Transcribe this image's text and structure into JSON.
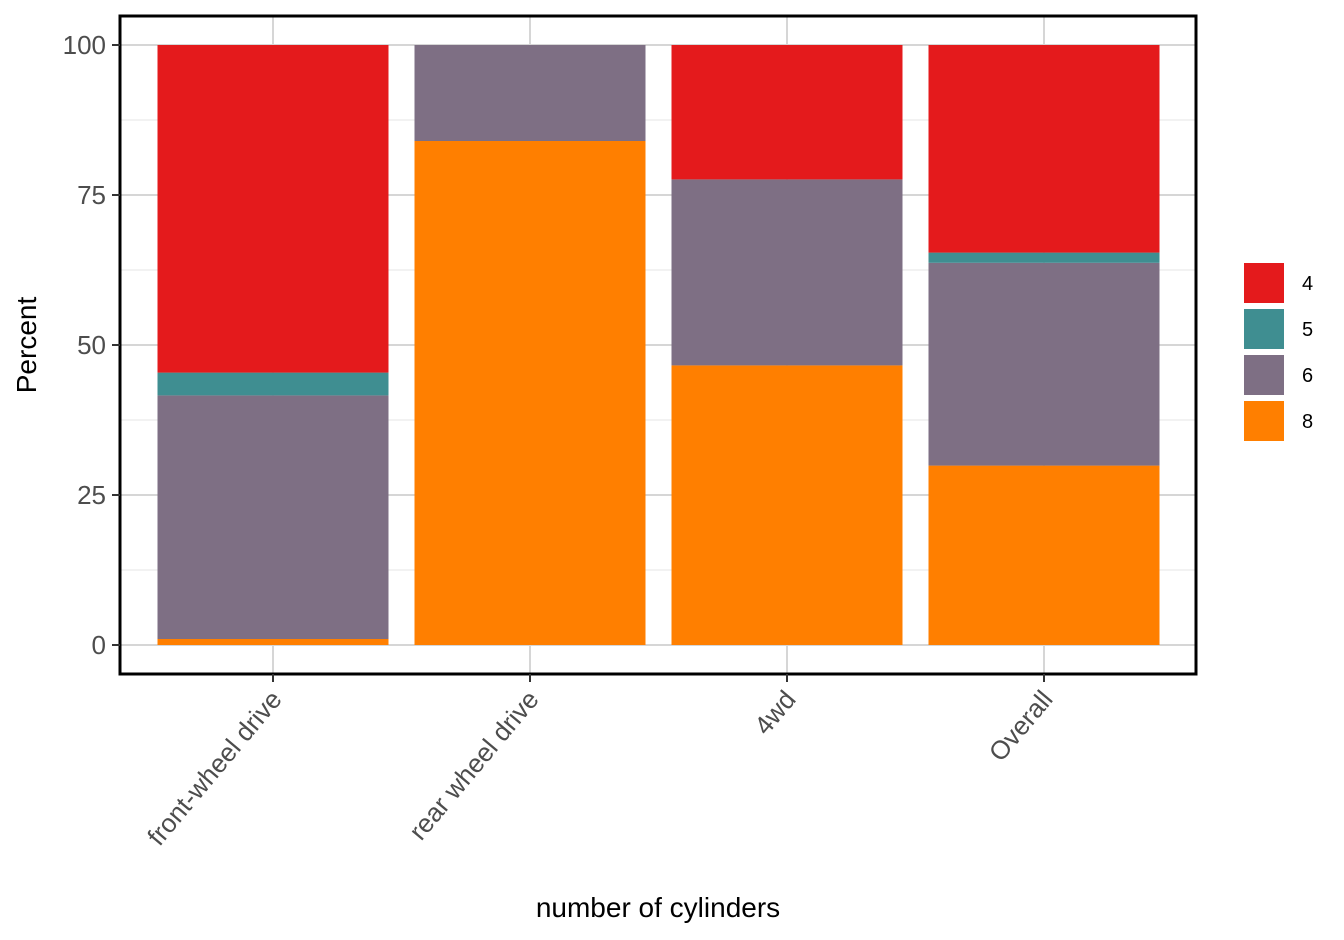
{
  "chart_data": {
    "type": "bar",
    "stacked": true,
    "categories": [
      "front-wheel drive",
      "rear wheel drive",
      "4wd",
      "Overall"
    ],
    "series": [
      {
        "name": "8",
        "color": "#FF7F00",
        "values": [
          1.0,
          84.0,
          46.6,
          29.9
        ]
      },
      {
        "name": "6",
        "color": "#7E6F84",
        "values": [
          40.6,
          16.0,
          31.0,
          33.8
        ]
      },
      {
        "name": "5",
        "color": "#3F8E91",
        "values": [
          3.8,
          0.0,
          0.0,
          1.7
        ]
      },
      {
        "name": "4",
        "color": "#E41A1C",
        "values": [
          54.6,
          0.0,
          22.4,
          34.6
        ]
      }
    ],
    "legend_order": [
      "4",
      "5",
      "6",
      "8"
    ],
    "xlabel": "number of cylinders",
    "ylabel": "Percent",
    "ylim": [
      0,
      100
    ],
    "yticks": [
      0,
      25,
      50,
      75,
      100
    ],
    "grid": true,
    "legend_position": "right"
  }
}
